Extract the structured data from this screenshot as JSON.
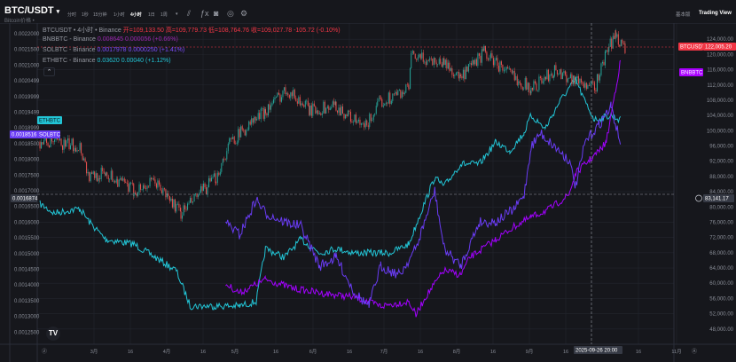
{
  "header": {
    "symbol": "BTC/USDT",
    "symbol_caret": "▾",
    "subtitle": "Bitcoin价格 •",
    "intervals": [
      "分时",
      "1秒",
      "15分钟",
      "1小时",
      "4小时",
      "1日",
      "1周"
    ],
    "active_interval": "4小时",
    "more": "▾",
    "icons": [
      "candle-chart-icon",
      "indicator-icon",
      "camera-icon",
      "settings-icon",
      "gear-icon"
    ],
    "basic_label": "基本版",
    "tv_label": "Trading View"
  },
  "legend": {
    "main": {
      "name": "BTCUSDT • 4小时 • Binance",
      "open": "开=109,133.50",
      "high": "高=109,779.73",
      "low": "低=108,764.76",
      "close": "收=109,027.78",
      "change": "-105.72 (-0.10%)"
    },
    "overlays": [
      {
        "name": "BNBBTC - Binance",
        "value": "0.008645",
        "change": "0.000056 (+0.66%)",
        "color": "#9c27b0"
      },
      {
        "name": "SOLBTC - Binance",
        "value": "0.0017978",
        "change": "0.0000250 (+1.41%)",
        "color": "#7c4dff"
      },
      {
        "name": "ETHBTC - Binance",
        "value": "0.03620",
        "change": "0.00040 (+1.12%)",
        "color": "#22c5d6"
      }
    ],
    "collapse": "⌃"
  },
  "colors": {
    "bg": "#16171c",
    "grid": "#23262e",
    "up": "#26a69a",
    "down": "#ef5350",
    "btc_tag": "#f23645"
  },
  "axes": {
    "right_ticks": [
      "124,000.00",
      "120,000.00",
      "116,000.00",
      "112,000.00",
      "108,000.00",
      "104,000.00",
      "100,000.00",
      "96,000.00",
      "92,000.00",
      "88,000.00",
      "84,000.00",
      "80,000.00",
      "76,000.00",
      "72,000.00",
      "68,000.00",
      "64,000.00",
      "60,000.00",
      "56,000.00",
      "52,000.00",
      "48,000.00"
    ],
    "left_ticks": [
      "0.0022000",
      "0.0021500",
      "0.0021000",
      "0.0020499",
      "0.0019999",
      "0.0019499",
      "0.0018999",
      "0.0018500",
      "0.0018000",
      "0.0017500",
      "0.0017000",
      "0.0016500",
      "0.0016000",
      "0.0015500",
      "0.0015000",
      "0.0014500",
      "0.0014000",
      "0.0013500",
      "0.0013000",
      "0.0012500"
    ],
    "time_labels": [
      "3月",
      "16",
      "4月",
      "16",
      "5月",
      "16",
      "6月",
      "16",
      "7月",
      "16",
      "8月",
      "16",
      "9月",
      "16",
      "16",
      "11月"
    ],
    "crosshair_time": "2025-09-26  20:00",
    "crosshair_right": "83,141.17",
    "crosshair_left": "0.0016874",
    "btc_tag": "BTCUSDT",
    "btc_price": "122,005.20",
    "bnb_tag": "BNBBTC",
    "eth_tag": "ETHBTC",
    "sol_tag": "SOLBTC",
    "sol_value": "0.0018516"
  },
  "chart_data": {
    "type": "candlestick+line",
    "interval": "4小时",
    "right_axis": [
      48000,
      128000
    ],
    "left_axis": [
      0.00125,
      0.0022
    ],
    "btc": [
      [
        "2025-02-06",
        97100
      ],
      [
        "2025-02-23",
        96000
      ],
      [
        "2025-02-27",
        87800
      ],
      [
        "2025-03-06",
        89000
      ],
      [
        "2025-03-18",
        84200
      ],
      [
        "2025-03-27",
        86600
      ],
      [
        "2025-04-07",
        78400
      ],
      [
        "2025-04-22",
        87800
      ],
      [
        "2025-04-28",
        97100
      ],
      [
        "2025-05-13",
        105300
      ],
      [
        "2025-05-22",
        111000
      ],
      [
        "2025-06-01",
        105300
      ],
      [
        "2025-06-12",
        106500
      ],
      [
        "2025-06-24",
        100600
      ],
      [
        "2025-07-01",
        107600
      ],
      [
        "2025-07-13",
        111000
      ],
      [
        "2025-07-14",
        119300
      ],
      [
        "2025-07-28",
        118000
      ],
      [
        "2025-08-04",
        113500
      ],
      [
        "2025-08-14",
        120500
      ],
      [
        "2025-08-23",
        115800
      ],
      [
        "2025-09-03",
        111000
      ],
      [
        "2025-09-13",
        115800
      ],
      [
        "2025-09-26",
        112300
      ],
      [
        "2025-09-30",
        111000
      ],
      [
        "2025-10-05",
        120500
      ],
      [
        "2025-10-09",
        125200
      ],
      [
        "2025-10-13",
        121700
      ]
    ],
    "ethbtc": [
      [
        "2025-02-06",
        0.001658
      ],
      [
        "2025-02-12",
        0.001629
      ],
      [
        "2025-02-23",
        0.001643
      ],
      [
        "2025-02-27",
        0.001601
      ],
      [
        "2025-03-06",
        0.001545
      ],
      [
        "2025-03-18",
        0.00153
      ],
      [
        "2025-03-27",
        0.001488
      ],
      [
        "2025-04-05",
        0.001446
      ],
      [
        "2025-04-11",
        0.001333
      ],
      [
        "2025-04-21",
        0.001333
      ],
      [
        "2025-05-02",
        0.001333
      ],
      [
        "2025-05-09",
        0.001347
      ],
      [
        "2025-05-13",
        0.001516
      ],
      [
        "2025-05-21",
        0.001488
      ],
      [
        "2025-05-28",
        0.001545
      ],
      [
        "2025-06-05",
        0.001502
      ],
      [
        "2025-06-12",
        0.001516
      ],
      [
        "2025-06-20",
        0.001502
      ],
      [
        "2025-07-05",
        0.001502
      ],
      [
        "2025-07-13",
        0.00153
      ],
      [
        "2025-07-18",
        0.001629
      ],
      [
        "2025-07-24",
        0.001742
      ],
      [
        "2025-07-28",
        0.001714
      ],
      [
        "2025-08-04",
        0.001785
      ],
      [
        "2025-08-12",
        0.001785
      ],
      [
        "2025-08-19",
        0.001855
      ],
      [
        "2025-08-25",
        0.001827
      ],
      [
        "2025-08-31",
        0.001884
      ],
      [
        "2025-09-03",
        0.00194
      ],
      [
        "2025-09-09",
        0.001898
      ],
      [
        "2025-09-15",
        0.001982
      ],
      [
        "2025-09-19",
        0.002025
      ],
      [
        "2025-09-22",
        0.002053
      ],
      [
        "2025-09-26",
        0.001982
      ],
      [
        "2025-09-30",
        0.001926
      ],
      [
        "2025-10-07",
        0.00194
      ],
      [
        "2025-10-11",
        0.001926
      ]
    ],
    "solbtc": [
      [
        "2025-04-26",
        0.001601
      ],
      [
        "2025-05-02",
        0.001559
      ],
      [
        "2025-05-09",
        0.001672
      ],
      [
        "2025-05-13",
        0.001629
      ],
      [
        "2025-05-21",
        0.001601
      ],
      [
        "2025-05-28",
        0.001587
      ],
      [
        "2025-06-05",
        0.00146
      ],
      [
        "2025-06-12",
        0.001488
      ],
      [
        "2025-06-20",
        0.001375
      ],
      [
        "2025-06-26",
        0.001333
      ],
      [
        "2025-07-01",
        0.00146
      ],
      [
        "2025-07-09",
        0.001432
      ],
      [
        "2025-07-16",
        0.001516
      ],
      [
        "2025-07-24",
        0.001699
      ],
      [
        "2025-07-28",
        0.001516
      ],
      [
        "2025-08-04",
        0.00146
      ],
      [
        "2025-08-12",
        0.001601
      ],
      [
        "2025-08-19",
        0.001601
      ],
      [
        "2025-08-27",
        0.001643
      ],
      [
        "2025-08-31",
        0.001686
      ],
      [
        "2025-09-03",
        0.001841
      ],
      [
        "2025-09-07",
        0.001884
      ],
      [
        "2025-09-11",
        0.001855
      ],
      [
        "2025-09-19",
        0.001799
      ],
      [
        "2025-09-22",
        0.001714
      ],
      [
        "2025-09-26",
        0.001855
      ],
      [
        "2025-10-02",
        0.001912
      ],
      [
        "2025-10-07",
        0.001968
      ],
      [
        "2025-10-11",
        0.001855
      ]
    ],
    "bnbbtc": [
      [
        "2025-04-26",
        0.001403
      ],
      [
        "2025-05-02",
        0.001375
      ],
      [
        "2025-05-13",
        0.001418
      ],
      [
        "2025-05-25",
        0.001389
      ],
      [
        "2025-06-05",
        0.001375
      ],
      [
        "2025-06-20",
        0.001361
      ],
      [
        "2025-07-01",
        0.001333
      ],
      [
        "2025-07-13",
        0.001347
      ],
      [
        "2025-07-16",
        0.001304
      ],
      [
        "2025-07-20",
        0.001361
      ],
      [
        "2025-07-28",
        0.001446
      ],
      [
        "2025-08-04",
        0.001432
      ],
      [
        "2025-08-08",
        0.001488
      ],
      [
        "2025-08-19",
        0.001545
      ],
      [
        "2025-08-27",
        0.001587
      ],
      [
        "2025-09-03",
        0.001615
      ],
      [
        "2025-09-11",
        0.001643
      ],
      [
        "2025-09-19",
        0.001686
      ],
      [
        "2025-09-22",
        0.001756
      ],
      [
        "2025-09-28",
        0.001799
      ],
      [
        "2025-10-02",
        0.001827
      ],
      [
        "2025-10-05",
        0.001855
      ],
      [
        "2025-10-09",
        0.002025
      ],
      [
        "2025-10-11",
        0.00211
      ]
    ]
  }
}
